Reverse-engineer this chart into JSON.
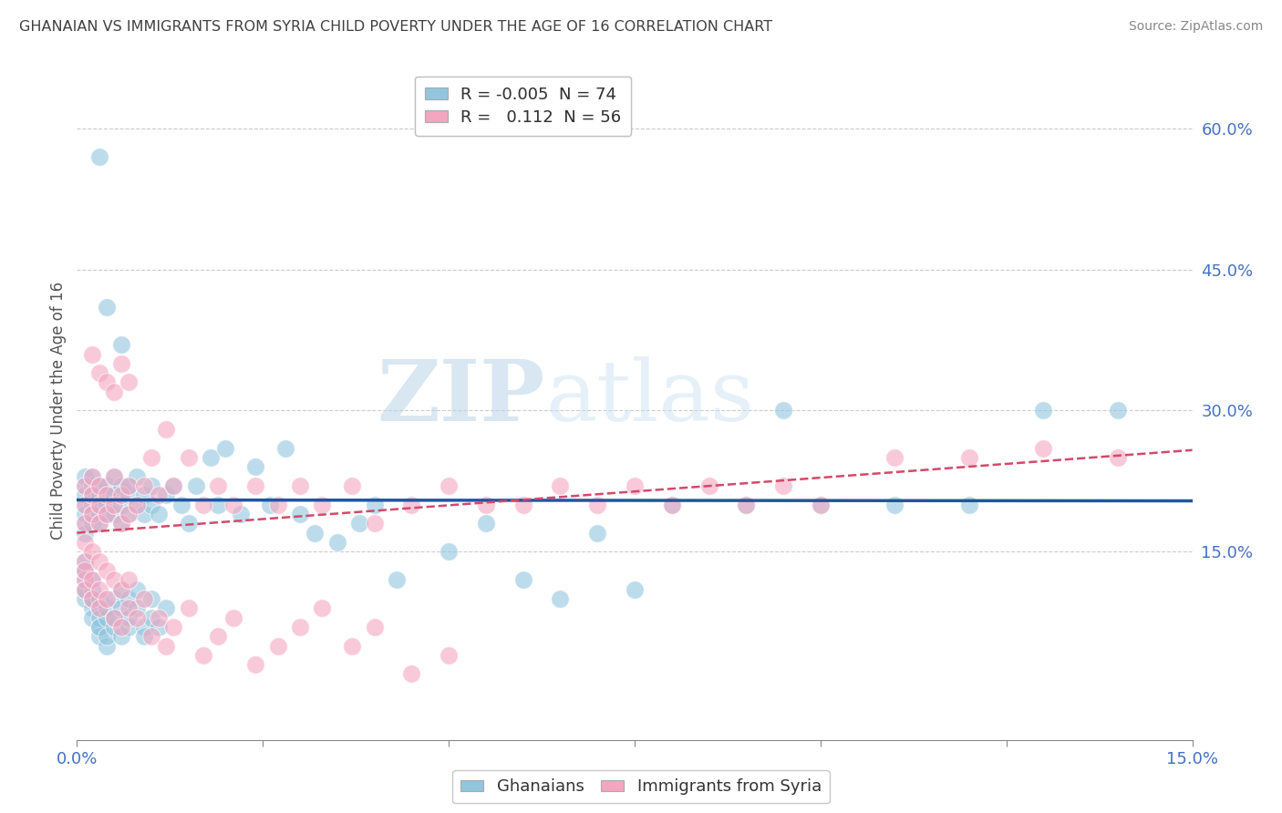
{
  "title": "GHANAIAN VS IMMIGRANTS FROM SYRIA CHILD POVERTY UNDER THE AGE OF 16 CORRELATION CHART",
  "source": "Source: ZipAtlas.com",
  "ylabel": "Child Poverty Under the Age of 16",
  "watermark_zip": "ZIP",
  "watermark_atlas": "atlas",
  "x_min": 0.0,
  "x_max": 0.15,
  "y_min": -0.05,
  "y_max": 0.65,
  "yticks": [
    0.15,
    0.3,
    0.45,
    0.6
  ],
  "ytick_labels": [
    "15.0%",
    "30.0%",
    "45.0%",
    "60.0%"
  ],
  "xticks": [
    0.0,
    0.025,
    0.05,
    0.075,
    0.1,
    0.125,
    0.15
  ],
  "legend1_r": "-0.005",
  "legend1_n": "74",
  "legend2_r": "0.112",
  "legend2_n": "56",
  "blue_color": "#92c5de",
  "pink_color": "#f4a5c0",
  "blue_line_color": "#2155a0",
  "pink_line_color": "#d4496a",
  "title_color": "#404040",
  "source_color": "#888888",
  "axis_label_color": "#4472C4",
  "tick_color": "#888888",
  "grid_color": "#cccccc",
  "background_color": "#ffffff",
  "ghana_x": [
    0.001,
    0.001,
    0.001,
    0.001,
    0.001,
    0.001,
    0.001,
    0.002,
    0.002,
    0.002,
    0.002,
    0.002,
    0.002,
    0.003,
    0.003,
    0.003,
    0.003,
    0.003,
    0.003,
    0.004,
    0.004,
    0.004,
    0.004,
    0.005,
    0.005,
    0.005,
    0.006,
    0.006,
    0.006,
    0.007,
    0.007,
    0.007,
    0.008,
    0.008,
    0.009,
    0.009,
    0.01,
    0.01,
    0.011,
    0.012,
    0.013,
    0.014,
    0.015,
    0.016,
    0.018,
    0.019,
    0.02,
    0.022,
    0.024,
    0.026,
    0.028,
    0.03,
    0.032,
    0.035,
    0.038,
    0.04,
    0.043,
    0.05,
    0.055,
    0.06,
    0.065,
    0.07,
    0.075,
    0.08,
    0.09,
    0.095,
    0.1,
    0.11,
    0.12,
    0.13,
    0.003,
    0.004,
    0.006,
    0.14
  ],
  "ghana_y": [
    0.22,
    0.2,
    0.18,
    0.21,
    0.19,
    0.17,
    0.23,
    0.2,
    0.22,
    0.18,
    0.21,
    0.19,
    0.23,
    0.2,
    0.21,
    0.19,
    0.22,
    0.18,
    0.2,
    0.21,
    0.19,
    0.22,
    0.2,
    0.21,
    0.19,
    0.23,
    0.2,
    0.22,
    0.18,
    0.21,
    0.19,
    0.22,
    0.2,
    0.23,
    0.19,
    0.21,
    0.22,
    0.2,
    0.19,
    0.21,
    0.22,
    0.2,
    0.18,
    0.22,
    0.25,
    0.2,
    0.26,
    0.19,
    0.24,
    0.2,
    0.26,
    0.19,
    0.17,
    0.16,
    0.18,
    0.2,
    0.12,
    0.15,
    0.18,
    0.12,
    0.1,
    0.17,
    0.11,
    0.2,
    0.2,
    0.3,
    0.2,
    0.2,
    0.2,
    0.3,
    0.57,
    0.41,
    0.37,
    0.3
  ],
  "ghana_y_below": [
    0.13,
    0.11,
    0.12,
    0.1,
    0.13,
    0.11,
    0.14,
    0.1,
    0.12,
    0.11,
    0.09,
    0.08,
    0.1,
    0.07,
    0.09,
    0.06,
    0.08,
    0.1,
    0.07,
    0.05,
    0.08,
    0.06,
    0.09,
    0.07,
    0.1,
    0.08,
    0.06,
    0.11,
    0.09,
    0.07,
    0.08,
    0.1,
    0.11,
    0.09,
    0.07,
    0.06,
    0.08,
    0.1,
    0.07,
    0.09
  ],
  "syria_x": [
    0.001,
    0.001,
    0.001,
    0.001,
    0.002,
    0.002,
    0.002,
    0.003,
    0.003,
    0.003,
    0.004,
    0.004,
    0.005,
    0.005,
    0.006,
    0.006,
    0.007,
    0.007,
    0.008,
    0.009,
    0.01,
    0.011,
    0.012,
    0.013,
    0.015,
    0.017,
    0.019,
    0.021,
    0.024,
    0.027,
    0.03,
    0.033,
    0.037,
    0.04,
    0.045,
    0.05,
    0.055,
    0.06,
    0.065,
    0.07,
    0.075,
    0.08,
    0.085,
    0.09,
    0.095,
    0.1,
    0.11,
    0.12,
    0.13,
    0.14,
    0.002,
    0.003,
    0.004,
    0.005,
    0.006,
    0.007
  ],
  "syria_y": [
    0.2,
    0.18,
    0.22,
    0.16,
    0.21,
    0.19,
    0.23,
    0.2,
    0.18,
    0.22,
    0.19,
    0.21,
    0.2,
    0.23,
    0.18,
    0.21,
    0.22,
    0.19,
    0.2,
    0.22,
    0.25,
    0.21,
    0.28,
    0.22,
    0.25,
    0.2,
    0.22,
    0.2,
    0.22,
    0.2,
    0.22,
    0.2,
    0.22,
    0.18,
    0.2,
    0.22,
    0.2,
    0.2,
    0.22,
    0.2,
    0.22,
    0.2,
    0.22,
    0.2,
    0.22,
    0.2,
    0.25,
    0.25,
    0.26,
    0.25,
    0.36,
    0.34,
    0.33,
    0.32,
    0.35,
    0.33
  ],
  "syria_y_below": [
    0.14,
    0.12,
    0.13,
    0.11,
    0.15,
    0.1,
    0.12,
    0.14,
    0.09,
    0.11,
    0.13,
    0.1,
    0.12,
    0.08,
    0.11,
    0.07,
    0.09,
    0.12,
    0.08,
    0.1,
    0.06,
    0.08,
    0.05,
    0.07,
    0.09,
    0.04,
    0.06,
    0.08,
    0.03,
    0.05,
    0.07,
    0.09,
    0.05,
    0.07,
    0.02,
    0.04
  ],
  "ghana_line_x": [
    0.0,
    0.15
  ],
  "ghana_line_y": [
    0.205,
    0.204
  ],
  "syria_line_x": [
    0.0,
    0.15
  ],
  "syria_line_y": [
    0.17,
    0.258
  ]
}
